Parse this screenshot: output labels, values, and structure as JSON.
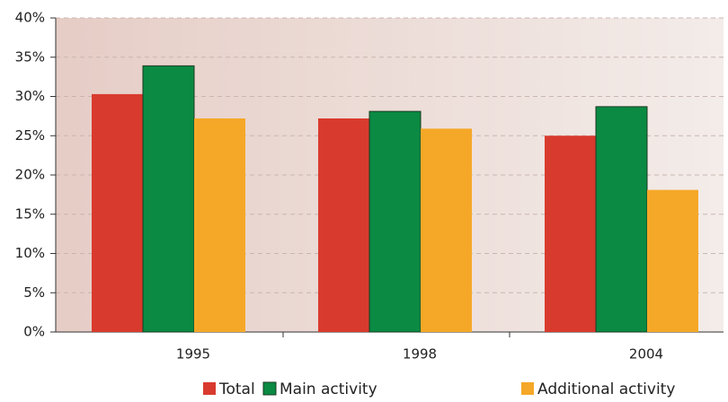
{
  "chart_data": {
    "type": "bar",
    "categories": [
      "1995",
      "1998",
      "2004"
    ],
    "series": [
      {
        "name": "Total",
        "color": "#d93a2e",
        "values": [
          30.3,
          27.2,
          25.0
        ]
      },
      {
        "name": "Main activity",
        "color": "#0a8a43",
        "values": [
          33.9,
          28.1,
          28.7
        ]
      },
      {
        "name": "Additional activity",
        "color": "#f5a828",
        "values": [
          27.2,
          25.9,
          18.1
        ]
      }
    ],
    "ylim": [
      0,
      40
    ],
    "yticks": [
      {
        "value": 0,
        "label": "0%"
      },
      {
        "value": 5,
        "label": "5%"
      },
      {
        "value": 10,
        "label": "10%"
      },
      {
        "value": 15,
        "label": "15%"
      },
      {
        "value": 20,
        "label": "20%"
      },
      {
        "value": 25,
        "label": "25%"
      },
      {
        "value": 30,
        "label": "30%"
      },
      {
        "value": 35,
        "label": "35%"
      },
      {
        "value": 40,
        "label": "40%"
      }
    ],
    "grid": true,
    "legend": "bottom"
  }
}
